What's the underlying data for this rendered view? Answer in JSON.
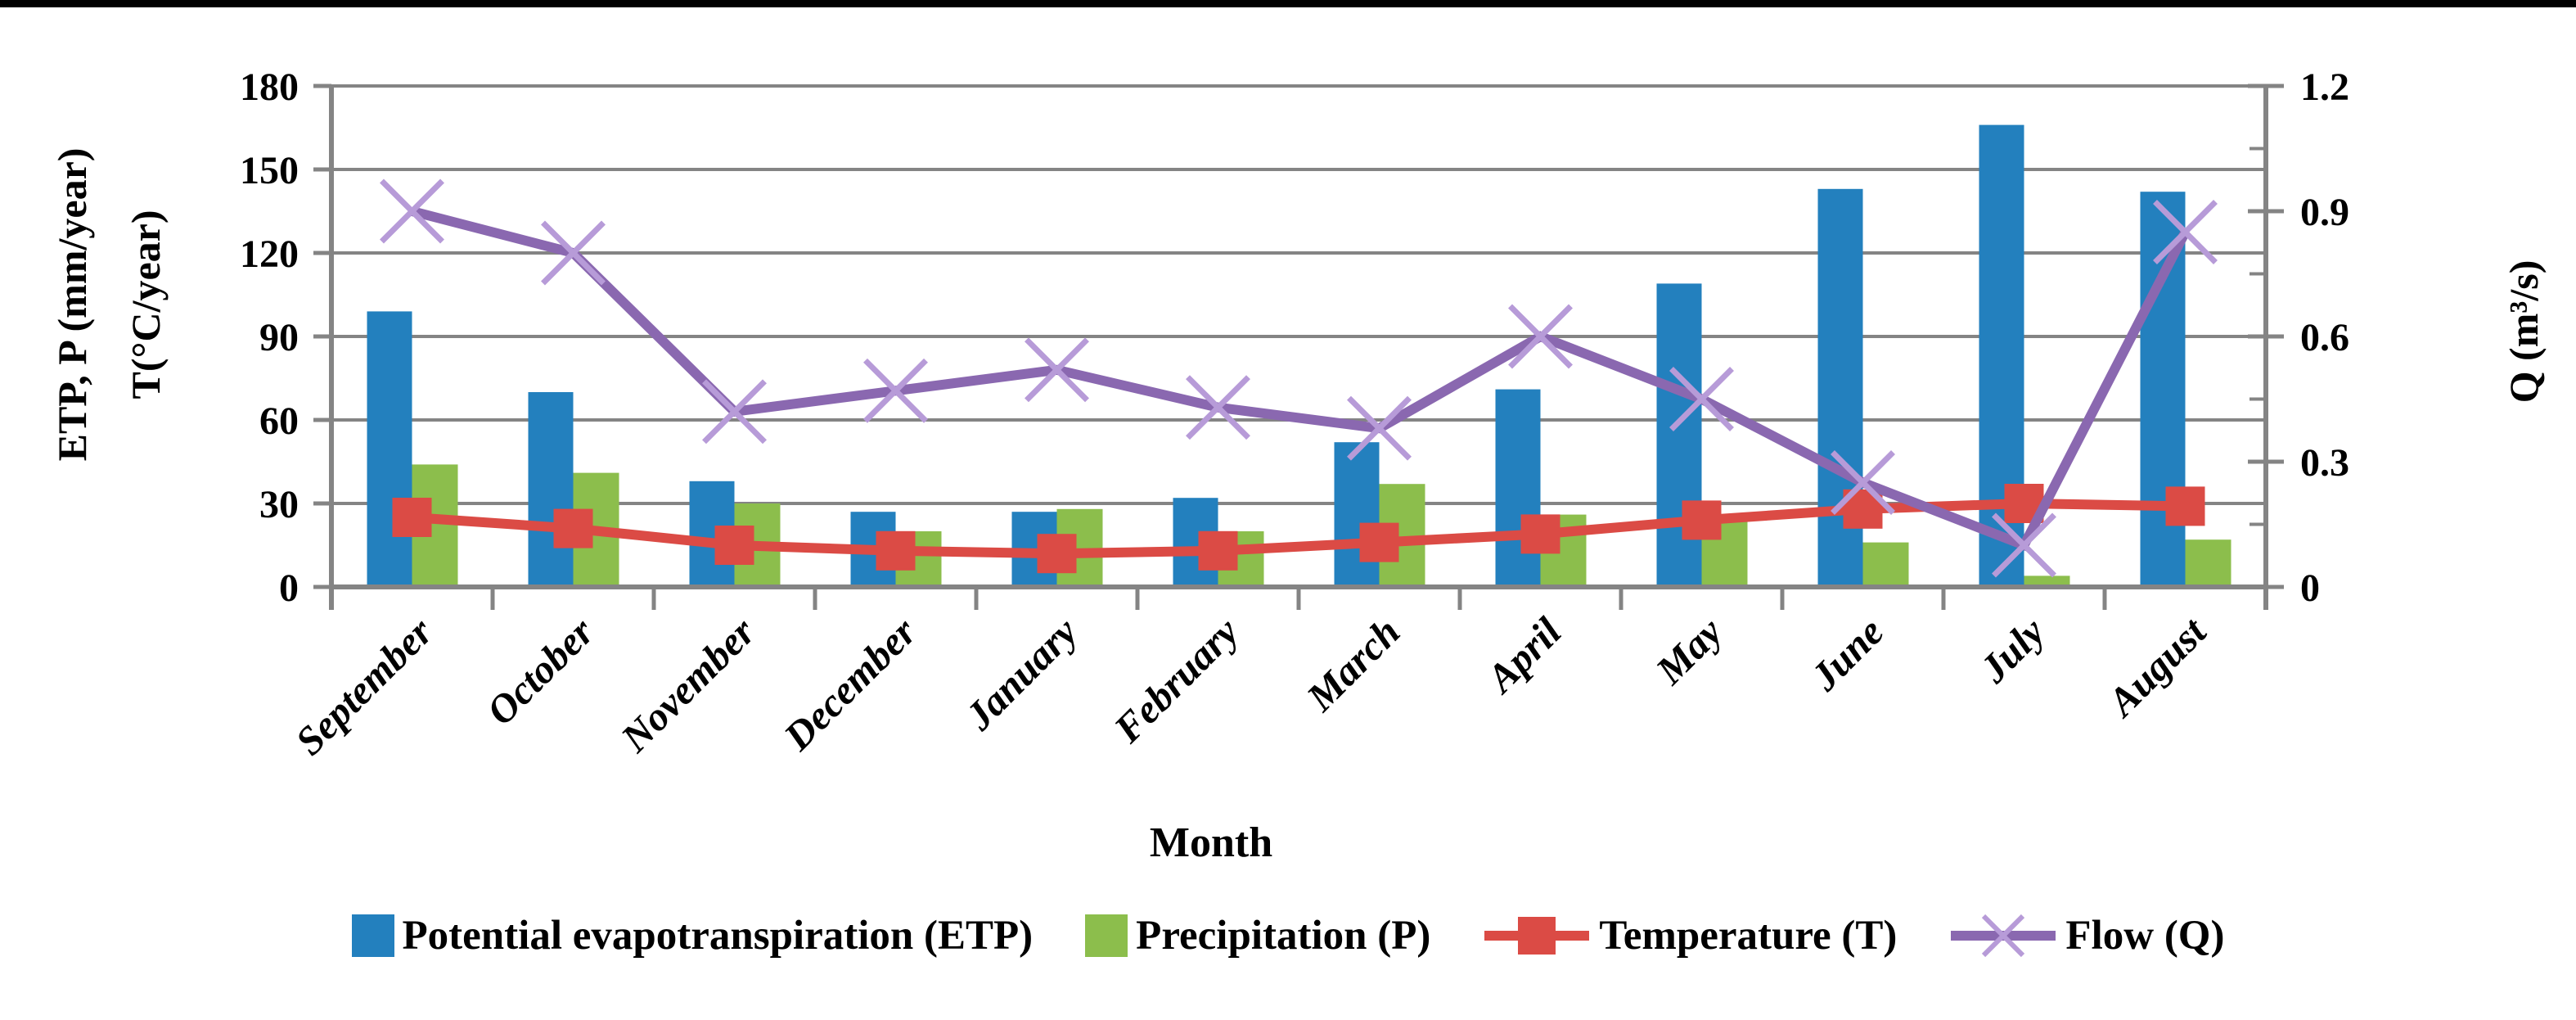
{
  "figure": {
    "top_border_color": "#000000",
    "background": "#ffffff"
  },
  "chart_data": {
    "type": "bar+line combo",
    "grid": true,
    "legend_position": "bottom",
    "categories": [
      "September",
      "October",
      "November",
      "December",
      "January",
      "February",
      "March",
      "April",
      "May",
      "June",
      "July",
      "August"
    ],
    "series": [
      {
        "name": "Potential evapotranspiration (ETP)",
        "type": "bar",
        "axis": "left",
        "color": "#2380BE",
        "values": [
          99,
          70,
          38,
          27,
          27,
          32,
          52,
          71,
          109,
          143,
          166,
          142
        ]
      },
      {
        "name": "Precipitation (P)",
        "type": "bar",
        "axis": "left",
        "color": "#8CBE4C",
        "values": [
          44,
          41,
          30,
          20,
          28,
          20,
          37,
          26,
          25,
          16,
          4,
          17
        ]
      },
      {
        "name": "Temperature (T)",
        "type": "line",
        "marker": "square",
        "axis": "left",
        "color": "#DB4B45",
        "values": [
          25,
          21,
          15,
          13,
          12,
          13,
          16,
          19,
          24,
          28,
          30,
          29
        ]
      },
      {
        "name": "Flow (Q)",
        "type": "line",
        "marker": "x",
        "axis": "right",
        "color": "#8A68B0",
        "marker_color": "#B79BD8",
        "values": [
          0.9,
          0.8,
          0.42,
          0.47,
          0.52,
          0.43,
          0.38,
          0.6,
          0.45,
          0.25,
          0.1,
          0.85
        ]
      }
    ],
    "left_axis": {
      "title_line1": "ETP, P (mm/year)",
      "title_line2": "T(°C/year)",
      "min": 0,
      "max": 180,
      "step": 30,
      "tick_labels": [
        "0",
        "30",
        "60",
        "90",
        "120",
        "150",
        "180"
      ]
    },
    "right_axis": {
      "title": "Q (m³/s)",
      "min": 0,
      "max": 1.2,
      "step": 0.3,
      "minor_step": 0.15,
      "tick_labels": [
        "0",
        "0.3",
        "0.6",
        "0.9",
        "1.2"
      ]
    },
    "x_axis": {
      "title": "Month"
    },
    "colors": {
      "grid": "#848484",
      "axis": "#848484",
      "text": "#000000"
    }
  }
}
